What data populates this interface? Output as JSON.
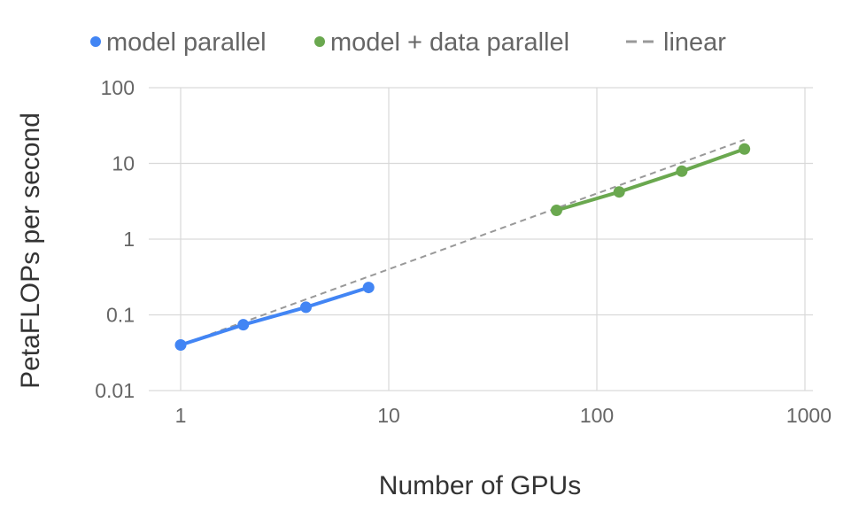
{
  "chart_data": {
    "type": "line",
    "title": "",
    "xlabel": "Number of GPUs",
    "ylabel": "PetaFLOPs per second",
    "xscale": "log",
    "yscale": "log",
    "xlim": [
      1,
      1000
    ],
    "ylim": [
      0.01,
      100
    ],
    "x_ticks": [
      "1",
      "10",
      "100",
      "1000"
    ],
    "y_ticks": [
      "100",
      "10",
      "1",
      "0.1",
      "0.01"
    ],
    "grid": true,
    "legend_position": "top",
    "series": [
      {
        "name": "model parallel",
        "color": "#4285f4",
        "style": "solid",
        "marker": "circle",
        "x": [
          1,
          2,
          4,
          8
        ],
        "values": [
          0.04,
          0.074,
          0.126,
          0.23
        ]
      },
      {
        "name": "model + data parallel",
        "color": "#6aa84f",
        "style": "solid",
        "marker": "circle",
        "x": [
          64,
          128,
          256,
          512
        ],
        "values": [
          2.4,
          4.2,
          7.9,
          15.5
        ]
      },
      {
        "name": "linear",
        "color": "#999999",
        "style": "dashed",
        "marker": "none",
        "x": [
          1,
          512
        ],
        "values": [
          0.04,
          20.5
        ]
      }
    ]
  },
  "legend": {
    "items": [
      {
        "label": "model parallel",
        "color": "#4285f4",
        "symbol": "dot"
      },
      {
        "label": "model + data parallel",
        "color": "#6aa84f",
        "symbol": "dot"
      },
      {
        "label": "linear",
        "color": "#999999",
        "symbol": "dash"
      }
    ]
  }
}
